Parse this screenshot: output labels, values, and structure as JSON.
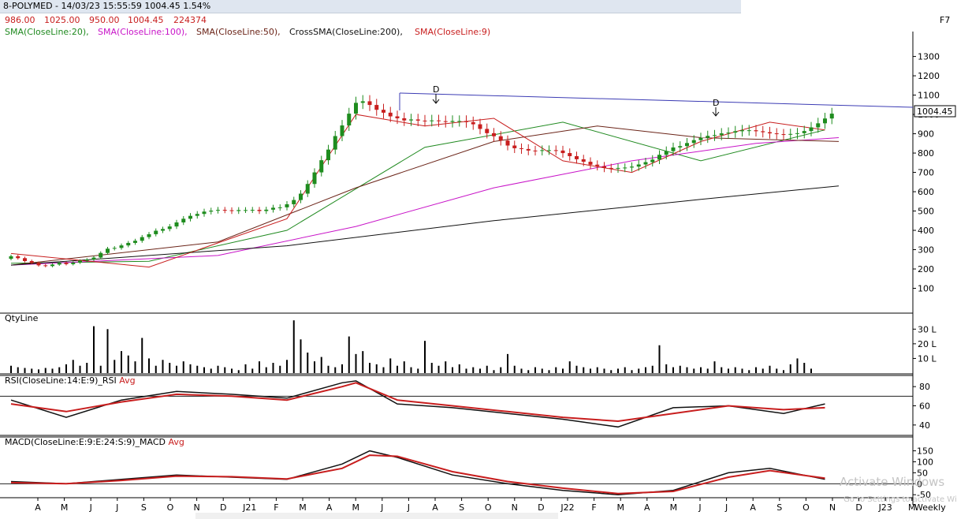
{
  "title": "8-POLYMED - 14/03/23 15:55:59 1004.45 1.54%",
  "ohlc": [
    "986.00",
    "1025.00",
    "950.00",
    "1004.45",
    "224374"
  ],
  "corner_label": "F7",
  "sma_legend": [
    {
      "text": "SMA(CloseLine:20),",
      "color": "#208a20"
    },
    {
      "text": "SMA(CloseLine:100),",
      "color": "#c814c8"
    },
    {
      "text": "SMA(CloseLine:50),",
      "color": "#6b2418"
    },
    {
      "text": "CrossSMA(CloseLine:200),",
      "color": "#111111"
    },
    {
      "text": "SMA(CloseLine:9)",
      "color": "#c81e1e"
    }
  ],
  "panels": {
    "qty_label": "QtyLine",
    "rsi_label": "RSI(CloseLine:14:E:9)_RSI",
    "rsi_avg": "Avg",
    "macd_label": "MACD(CloseLine:E:9:E:24:S:9)_MACD",
    "macd_avg": "Avg"
  },
  "price_ticks": [
    "1300",
    "1200",
    "1100",
    "1000",
    "900",
    "800",
    "700",
    "600",
    "500",
    "400",
    "300",
    "200",
    "100"
  ],
  "qty_ticks": [
    "30 L",
    "20 L",
    "10 L"
  ],
  "rsi_ticks": [
    "80",
    "60",
    "40"
  ],
  "macd_ticks": [
    "150",
    "100",
    "50",
    "0",
    "-50"
  ],
  "last_price": "1004.45",
  "x_labels": [
    "A",
    "M",
    "J",
    "J",
    "S",
    "O",
    "N",
    "D",
    "J21",
    "F",
    "M",
    "A",
    "M",
    "J",
    "J",
    "A",
    "S",
    "O",
    "N",
    "D",
    "J22",
    "F",
    "M",
    "A",
    "M",
    "J",
    "J",
    "A",
    "S",
    "O",
    "N",
    "D",
    "J23",
    "M"
  ],
  "x_axis_mode": "Weekly",
  "annotations": [
    "D",
    "D"
  ],
  "watermark": {
    "line1": "Activate Windows",
    "line2": "Go to Settings to activate Windows."
  },
  "colors": {
    "up": "#1e8c1e",
    "down": "#c81e1e",
    "sma20": "#208a20",
    "sma100": "#c814c8",
    "sma50": "#6b2418",
    "sma200": "#111111",
    "sma9": "#c81e1e",
    "trendline": "#3c3cb4",
    "rsi": "#111111",
    "rsi_avg": "#c81e1e",
    "macd": "#111111",
    "macd_avg": "#c81e1e",
    "ohlc_text": "#c81e1e"
  },
  "chart_data": [
    {
      "type": "line",
      "title": "8-POLYMED",
      "x_unit": "week",
      "ylim": [
        0,
        1380
      ],
      "series": [
        {
          "name": "SMA(CloseLine:20)",
          "x": [
            0,
            20,
            40,
            60,
            80,
            100,
            118
          ],
          "values": [
            230,
            240,
            400,
            830,
            960,
            760,
            920
          ]
        },
        {
          "name": "SMA(CloseLine:100)",
          "x": [
            0,
            30,
            50,
            70,
            90,
            108,
            120
          ],
          "values": [
            220,
            270,
            420,
            620,
            760,
            850,
            880
          ]
        },
        {
          "name": "SMA(CloseLine:50)",
          "x": [
            0,
            30,
            50,
            70,
            85,
            100,
            120
          ],
          "values": [
            220,
            340,
            620,
            860,
            940,
            880,
            860
          ]
        },
        {
          "name": "CrossSMA(CloseLine:200)",
          "x": [
            0,
            40,
            70,
            100,
            120
          ],
          "values": [
            220,
            320,
            450,
            560,
            630
          ]
        },
        {
          "name": "SMA(CloseLine:9)",
          "x": [
            0,
            20,
            40,
            50,
            60,
            70,
            80,
            90,
            100,
            110,
            118
          ],
          "values": [
            280,
            210,
            460,
            1000,
            940,
            980,
            760,
            700,
            860,
            960,
            920
          ]
        }
      ],
      "candles_close": [
        266,
        256,
        241,
        232,
        219,
        215,
        223,
        232,
        225,
        233,
        243,
        249,
        259,
        283,
        305,
        309,
        322,
        335,
        346,
        365,
        380,
        398,
        407,
        420,
        441,
        460,
        475,
        485,
        497,
        502,
        506,
        504,
        500,
        505,
        505,
        506,
        500,
        507,
        517,
        519,
        535,
        557,
        590,
        640,
        700,
        763,
        818,
        888,
        943,
        1004,
        1060,
        1068,
        1049,
        1024,
        1009,
        990,
        980,
        969,
        974,
        968,
        967,
        969,
        965,
        961,
        966,
        966,
        960,
        949,
        925,
        903,
        887,
        865,
        839,
        825,
        821,
        813,
        812,
        815,
        815,
        813,
        800,
        784,
        768,
        755,
        740,
        732,
        723,
        719,
        723,
        725,
        730,
        741,
        753,
        766,
        791,
        810,
        829,
        836,
        852,
        867,
        879,
        889,
        893,
        902,
        906,
        913,
        918,
        918,
        913,
        908,
        902,
        898,
        896,
        899,
        903,
        914,
        933,
        954,
        979,
        1004
      ],
      "trend_line_start": 1100,
      "trend_line_end": 1030
    },
    {
      "type": "bar",
      "title": "QtyLine",
      "ylim": [
        0,
        3500000
      ],
      "values": [
        500000,
        400000,
        350000,
        300000,
        250000,
        350000,
        300000,
        400000,
        600000,
        900000,
        500000,
        700000,
        3200000,
        500000,
        3000000,
        900000,
        1500000,
        1200000,
        800000,
        2400000,
        1000000,
        500000,
        900000,
        700000,
        500000,
        800000,
        600000,
        500000,
        400000,
        300000,
        500000,
        400000,
        300000,
        200000,
        600000,
        300000,
        800000,
        400000,
        700000,
        500000,
        900000,
        3600000,
        2300000,
        1400000,
        800000,
        1100000,
        500000,
        400000,
        600000,
        2500000,
        1300000,
        1500000,
        700000,
        600000,
        400000,
        1000000,
        500000,
        800000,
        400000,
        300000,
        2200000,
        700000,
        500000,
        800000,
        400000,
        600000,
        300000,
        400000,
        300000,
        500000,
        200000,
        400000,
        1300000,
        500000,
        300000,
        200000,
        400000,
        300000,
        200000,
        400000,
        300000,
        800000,
        500000,
        400000,
        300000,
        400000,
        300000,
        200000,
        300000,
        400000,
        200000,
        300000,
        400000,
        500000,
        1900000,
        600000,
        400000,
        500000,
        400000,
        300000,
        400000,
        300000,
        800000,
        400000,
        300000,
        400000,
        300000,
        200000,
        400000,
        300000,
        500000,
        300000,
        200000,
        600000,
        1000000,
        700000,
        300000
      ]
    },
    {
      "type": "line",
      "title": "RSI(CloseLine:14:E:9)_RSI",
      "ylim": [
        30,
        90
      ],
      "series": [
        {
          "name": "RSI",
          "x": [
            0,
            8,
            16,
            24,
            32,
            40,
            48,
            50,
            56,
            64,
            72,
            80,
            88,
            96,
            104,
            112,
            118
          ],
          "values": [
            66,
            48,
            66,
            75,
            72,
            68,
            84,
            86,
            62,
            58,
            52,
            46,
            38,
            58,
            60,
            52,
            62
          ]
        },
        {
          "name": "Avg",
          "x": [
            0,
            8,
            16,
            24,
            32,
            40,
            48,
            50,
            56,
            64,
            72,
            80,
            88,
            96,
            104,
            112,
            118
          ],
          "values": [
            62,
            54,
            64,
            72,
            70,
            66,
            80,
            84,
            66,
            60,
            54,
            48,
            44,
            52,
            60,
            56,
            58
          ]
        }
      ]
    },
    {
      "type": "line",
      "title": "MACD(CloseLine:E:9:E:24:S:9)_MACD",
      "ylim": [
        -60,
        170
      ],
      "series": [
        {
          "name": "MACD",
          "x": [
            0,
            8,
            16,
            24,
            32,
            40,
            48,
            52,
            56,
            64,
            72,
            80,
            88,
            96,
            104,
            110,
            118
          ],
          "values": [
            10,
            0,
            20,
            40,
            30,
            20,
            90,
            150,
            120,
            40,
            0,
            -30,
            -50,
            -30,
            50,
            70,
            20
          ]
        },
        {
          "name": "Avg",
          "x": [
            0,
            8,
            16,
            24,
            32,
            40,
            48,
            52,
            56,
            64,
            72,
            80,
            88,
            96,
            104,
            110,
            118
          ],
          "values": [
            5,
            0,
            15,
            35,
            32,
            22,
            70,
            130,
            125,
            55,
            10,
            -20,
            -45,
            -35,
            30,
            60,
            25
          ]
        }
      ]
    }
  ]
}
